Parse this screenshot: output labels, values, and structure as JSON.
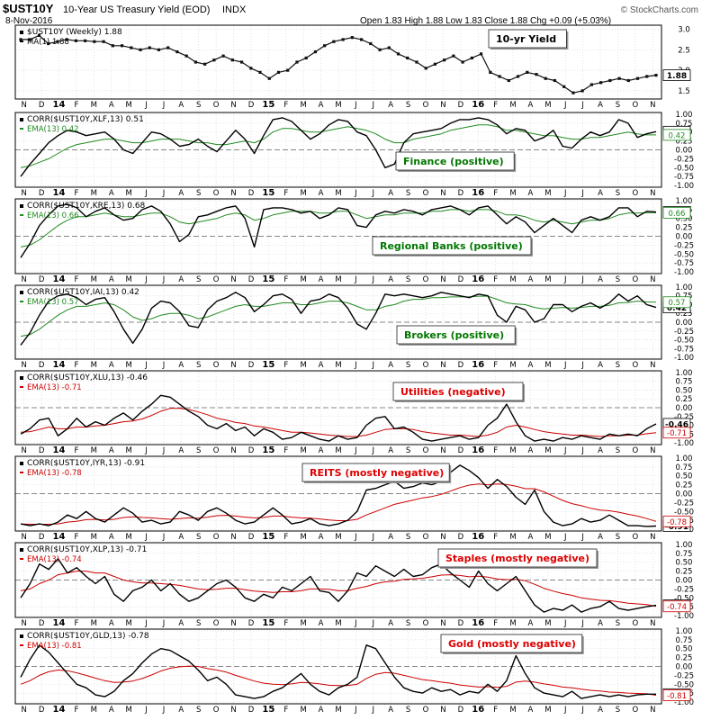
{
  "header": {
    "symbol": "$UST10Y",
    "description": "10-Year US Treasury Yield (EOD)",
    "exchange": "INDX",
    "date": "8-Nov-2016",
    "quote": "Open 1.83  High 1.88  Low 1.83  Close 1.88  Chg +0.09 (+5.03%)",
    "watermark": "© StockCharts.com"
  },
  "x_axis": {
    "months": [
      "N",
      "D",
      "14",
      "F",
      "M",
      "A",
      "M",
      "J",
      "J",
      "A",
      "S",
      "O",
      "N",
      "D",
      "15",
      "F",
      "M",
      "A",
      "M",
      "J",
      "J",
      "A",
      "S",
      "O",
      "N",
      "D",
      "16",
      "F",
      "M",
      "A",
      "M",
      "J",
      "J",
      "A",
      "S",
      "O",
      "N"
    ],
    "year_labels": [
      "14",
      "15",
      "16"
    ]
  },
  "colors": {
    "price_line": "#111111",
    "corr_line": "#000000",
    "positive_ema": "#228b22",
    "negative_ema": "#cc0000",
    "positive_label": "#007700",
    "negative_label": "#dd0000",
    "grid": "#d2d2d2",
    "zero_line": "#888888"
  },
  "chart_data": [
    {
      "id": "price",
      "type": "line",
      "legend": [
        "$UST10Y (Weekly) 1.88",
        "MA(1) 1.88"
      ],
      "annotation": "10-yr Yield",
      "last_value": "1.88",
      "y_ticks": [
        "3.0",
        "2.5",
        "2.0",
        "1.5"
      ],
      "ylim": [
        1.3,
        3.1
      ],
      "values": [
        2.75,
        2.75,
        2.85,
        2.65,
        2.7,
        2.75,
        2.72,
        2.72,
        2.7,
        2.7,
        2.6,
        2.6,
        2.55,
        2.5,
        2.55,
        2.5,
        2.55,
        2.45,
        2.35,
        2.2,
        2.15,
        2.25,
        2.35,
        2.25,
        2.2,
        2.05,
        1.95,
        1.8,
        1.95,
        2.0,
        2.2,
        2.3,
        2.45,
        2.6,
        2.7,
        2.75,
        2.8,
        2.75,
        2.65,
        2.5,
        2.55,
        2.4,
        2.3,
        2.2,
        2.05,
        2.15,
        2.25,
        2.35,
        2.2,
        2.3,
        2.4,
        1.95,
        1.85,
        1.75,
        1.85,
        1.95,
        1.9,
        1.8,
        1.75,
        1.6,
        1.45,
        1.5,
        1.65,
        1.7,
        1.75,
        1.8,
        1.75,
        1.8,
        1.85,
        1.88
      ]
    },
    {
      "id": "xlf",
      "type": "line",
      "legend": [
        "CORR($UST10Y,XLF,13) 0.51",
        "EMA(13) 0.42"
      ],
      "annotation": "Finance (positive)",
      "polarity": "positive",
      "last_value": "0.51",
      "last_ema": "0.42",
      "y_ticks": [
        "1.00",
        "0.75",
        "0.50",
        "0.25",
        "0.00",
        "-0.25",
        "-0.50",
        "-0.75",
        "-1.00"
      ],
      "ylim": [
        -1.05,
        1.05
      ],
      "corr": [
        -0.75,
        -0.4,
        -0.1,
        0.2,
        0.4,
        0.55,
        0.5,
        0.4,
        0.45,
        0.5,
        0.3,
        0.0,
        -0.1,
        0.2,
        0.5,
        0.45,
        0.3,
        0.1,
        0.15,
        0.3,
        0.1,
        -0.05,
        0.25,
        0.55,
        0.3,
        -0.1,
        0.4,
        0.85,
        0.9,
        0.8,
        0.55,
        0.3,
        0.45,
        0.7,
        0.85,
        0.8,
        0.5,
        0.4,
        0.0,
        -0.5,
        -0.4,
        0.2,
        0.45,
        0.5,
        0.55,
        0.6,
        0.75,
        0.85,
        0.85,
        0.9,
        0.85,
        0.7,
        0.45,
        0.6,
        0.55,
        0.25,
        0.35,
        0.55,
        0.1,
        0.05,
        0.3,
        0.5,
        0.4,
        0.5,
        0.85,
        0.75,
        0.35,
        0.45,
        0.51
      ],
      "ema": [
        -0.5,
        -0.45,
        -0.35,
        -0.25,
        -0.1,
        0.05,
        0.15,
        0.2,
        0.25,
        0.3,
        0.3,
        0.25,
        0.2,
        0.2,
        0.25,
        0.3,
        0.3,
        0.3,
        0.25,
        0.2,
        0.2,
        0.15,
        0.15,
        0.2,
        0.25,
        0.2,
        0.3,
        0.5,
        0.6,
        0.6,
        0.55,
        0.5,
        0.5,
        0.55,
        0.6,
        0.65,
        0.6,
        0.55,
        0.45,
        0.3,
        0.2,
        0.2,
        0.3,
        0.35,
        0.4,
        0.45,
        0.55,
        0.6,
        0.65,
        0.7,
        0.7,
        0.65,
        0.55,
        0.55,
        0.5,
        0.45,
        0.4,
        0.4,
        0.35,
        0.3,
        0.3,
        0.35,
        0.35,
        0.4,
        0.45,
        0.5,
        0.45,
        0.42,
        0.42
      ]
    },
    {
      "id": "kre",
      "type": "line",
      "legend": [
        "CORR($UST10Y,KRE,13) 0.68",
        "EMA(13) 0.66"
      ],
      "annotation": "Regional Banks (positive)",
      "polarity": "positive",
      "last_value": "0.68",
      "last_ema": "0.66",
      "y_ticks": [
        "1.00",
        "0.75",
        "0.50",
        "0.25",
        "0.00",
        "-0.25",
        "-0.50",
        "-0.75",
        "-1.00"
      ],
      "ylim": [
        -1.05,
        1.05
      ],
      "corr": [
        -0.6,
        -0.2,
        0.3,
        0.6,
        0.85,
        0.9,
        0.8,
        0.55,
        0.7,
        0.8,
        0.6,
        0.45,
        0.5,
        0.75,
        0.85,
        0.7,
        0.35,
        -0.15,
        0.05,
        0.55,
        0.6,
        0.7,
        0.8,
        0.85,
        0.5,
        -0.3,
        0.75,
        0.8,
        0.8,
        0.75,
        0.65,
        0.7,
        0.5,
        0.6,
        0.8,
        0.75,
        0.3,
        0.25,
        0.6,
        0.7,
        0.65,
        0.75,
        0.7,
        0.6,
        0.75,
        0.8,
        0.85,
        0.75,
        0.6,
        0.8,
        0.85,
        0.6,
        0.35,
        0.55,
        0.4,
        0.1,
        0.3,
        0.5,
        0.3,
        0.1,
        0.45,
        0.55,
        0.45,
        0.55,
        0.8,
        0.8,
        0.55,
        0.7,
        0.68
      ],
      "ema": [
        -0.3,
        -0.25,
        -0.1,
        0.1,
        0.3,
        0.45,
        0.55,
        0.55,
        0.6,
        0.65,
        0.6,
        0.55,
        0.55,
        0.6,
        0.65,
        0.65,
        0.55,
        0.4,
        0.35,
        0.4,
        0.45,
        0.5,
        0.6,
        0.65,
        0.6,
        0.45,
        0.5,
        0.6,
        0.65,
        0.7,
        0.7,
        0.7,
        0.65,
        0.65,
        0.7,
        0.7,
        0.6,
        0.5,
        0.55,
        0.6,
        0.6,
        0.65,
        0.65,
        0.65,
        0.7,
        0.7,
        0.75,
        0.75,
        0.7,
        0.75,
        0.75,
        0.7,
        0.6,
        0.6,
        0.55,
        0.45,
        0.4,
        0.45,
        0.4,
        0.35,
        0.4,
        0.45,
        0.45,
        0.5,
        0.6,
        0.65,
        0.65,
        0.66,
        0.66
      ]
    },
    {
      "id": "iai",
      "type": "line",
      "legend": [
        "CORR($UST10Y,IAI,13) 0.42",
        "EMA(13) 0.57"
      ],
      "annotation": "Brokers (positive)",
      "polarity": "positive",
      "last_value": "0.42",
      "last_ema": "0.57",
      "y_ticks": [
        "1.00",
        "0.75",
        "0.50",
        "0.25",
        "0.00",
        "-0.25",
        "-0.50",
        "-0.75",
        "-1.00"
      ],
      "ylim": [
        -1.05,
        1.05
      ],
      "corr": [
        -0.65,
        -0.3,
        0.2,
        0.6,
        0.75,
        0.8,
        0.7,
        0.5,
        0.65,
        0.7,
        0.3,
        -0.2,
        -0.6,
        -0.2,
        0.4,
        0.6,
        0.55,
        0.3,
        -0.1,
        -0.15,
        0.35,
        0.6,
        0.7,
        0.85,
        0.7,
        0.3,
        0.5,
        0.75,
        0.8,
        0.65,
        0.25,
        0.6,
        0.65,
        0.8,
        0.7,
        0.4,
        -0.05,
        -0.2,
        0.25,
        0.8,
        0.75,
        0.8,
        0.75,
        0.7,
        0.75,
        0.85,
        0.8,
        0.75,
        0.7,
        0.8,
        0.75,
        0.2,
        0.0,
        0.45,
        0.35,
        0.0,
        0.1,
        0.5,
        0.5,
        0.3,
        0.45,
        0.55,
        0.4,
        0.55,
        0.8,
        0.6,
        0.75,
        0.5,
        0.42
      ],
      "ema": [
        -0.4,
        -0.35,
        -0.2,
        0.0,
        0.2,
        0.35,
        0.45,
        0.45,
        0.5,
        0.55,
        0.5,
        0.35,
        0.15,
        0.05,
        0.1,
        0.2,
        0.25,
        0.25,
        0.2,
        0.1,
        0.15,
        0.25,
        0.35,
        0.45,
        0.5,
        0.45,
        0.45,
        0.5,
        0.55,
        0.55,
        0.5,
        0.5,
        0.55,
        0.6,
        0.6,
        0.55,
        0.45,
        0.35,
        0.35,
        0.45,
        0.5,
        0.6,
        0.65,
        0.65,
        0.7,
        0.7,
        0.72,
        0.72,
        0.72,
        0.74,
        0.74,
        0.65,
        0.55,
        0.52,
        0.5,
        0.42,
        0.38,
        0.4,
        0.42,
        0.4,
        0.42,
        0.45,
        0.45,
        0.48,
        0.55,
        0.56,
        0.6,
        0.58,
        0.57
      ]
    },
    {
      "id": "xlu",
      "type": "line",
      "legend": [
        "CORR($UST10Y,XLU,13) -0.46",
        "EMA(13) -0.71"
      ],
      "annotation": "Utilities (negative)",
      "polarity": "negative",
      "last_value": "-0.46",
      "last_ema": "-0.71",
      "y_ticks": [
        "1.00",
        "0.75",
        "0.50",
        "0.25",
        "0.00",
        "-0.25",
        "-0.50",
        "-0.75",
        "-1.00"
      ],
      "ylim": [
        -1.05,
        1.05
      ],
      "corr": [
        -0.75,
        -0.6,
        -0.35,
        -0.3,
        -0.8,
        -0.6,
        -0.3,
        -0.55,
        -0.4,
        -0.5,
        -0.3,
        -0.15,
        -0.35,
        -0.1,
        0.1,
        0.35,
        0.3,
        0.1,
        -0.1,
        -0.25,
        -0.5,
        -0.6,
        -0.45,
        -0.65,
        -0.55,
        -0.8,
        -0.6,
        -0.7,
        -0.9,
        -0.85,
        -0.7,
        -0.8,
        -0.9,
        -0.95,
        -0.8,
        -0.9,
        -0.85,
        -0.5,
        -0.3,
        -0.25,
        -0.6,
        -0.55,
        -0.7,
        -0.9,
        -0.95,
        -0.9,
        -0.85,
        -0.8,
        -0.9,
        -0.85,
        -0.5,
        -0.3,
        0.1,
        -0.4,
        -0.8,
        -0.95,
        -0.9,
        -0.95,
        -0.85,
        -0.9,
        -0.8,
        -0.85,
        -0.9,
        -0.75,
        -0.8,
        -0.75,
        -0.8,
        -0.6,
        -0.46
      ],
      "ema": [
        -0.7,
        -0.68,
        -0.62,
        -0.55,
        -0.6,
        -0.6,
        -0.55,
        -0.55,
        -0.52,
        -0.5,
        -0.45,
        -0.4,
        -0.38,
        -0.32,
        -0.22,
        -0.1,
        -0.02,
        -0.02,
        -0.05,
        -0.12,
        -0.2,
        -0.3,
        -0.35,
        -0.42,
        -0.45,
        -0.52,
        -0.55,
        -0.6,
        -0.65,
        -0.7,
        -0.7,
        -0.72,
        -0.75,
        -0.78,
        -0.8,
        -0.82,
        -0.82,
        -0.78,
        -0.7,
        -0.62,
        -0.6,
        -0.6,
        -0.62,
        -0.68,
        -0.72,
        -0.75,
        -0.78,
        -0.78,
        -0.8,
        -0.82,
        -0.78,
        -0.7,
        -0.55,
        -0.5,
        -0.55,
        -0.62,
        -0.68,
        -0.72,
        -0.75,
        -0.78,
        -0.78,
        -0.8,
        -0.82,
        -0.8,
        -0.8,
        -0.78,
        -0.78,
        -0.74,
        -0.71
      ]
    },
    {
      "id": "iyr",
      "type": "line",
      "legend": [
        "CORR($UST10Y,IYR,13) -0.91",
        "EMA(13) -0.78"
      ],
      "annotation": "REITS (mostly negative)",
      "polarity": "negative",
      "last_value": "-0.91",
      "last_ema": "-0.78",
      "y_ticks": [
        "1.00",
        "0.75",
        "0.50",
        "0.25",
        "0.00",
        "-0.25",
        "-0.50",
        "-0.75",
        "-1.00"
      ],
      "ylim": [
        -1.05,
        1.05
      ],
      "corr": [
        -0.85,
        -0.9,
        -0.85,
        -0.9,
        -0.8,
        -0.6,
        -0.7,
        -0.5,
        -0.7,
        -0.8,
        -0.6,
        -0.4,
        -0.55,
        -0.8,
        -0.75,
        -0.85,
        -0.8,
        -0.5,
        -0.6,
        -0.75,
        -0.5,
        -0.4,
        -0.55,
        -0.75,
        -0.85,
        -0.8,
        -0.6,
        -0.4,
        -0.6,
        -0.85,
        -0.8,
        -0.7,
        -0.85,
        -0.9,
        -0.85,
        -0.75,
        -0.5,
        0.1,
        0.15,
        0.25,
        0.35,
        0.15,
        0.2,
        0.3,
        0.25,
        0.35,
        0.6,
        0.8,
        0.65,
        0.45,
        0.15,
        0.4,
        0.2,
        -0.1,
        -0.3,
        0.1,
        -0.5,
        -0.8,
        -0.9,
        -0.85,
        -0.7,
        -0.8,
        -0.75,
        -0.6,
        -0.75,
        -0.9,
        -0.9,
        -0.92,
        -0.91
      ],
      "ema": [
        -0.85,
        -0.86,
        -0.86,
        -0.86,
        -0.85,
        -0.8,
        -0.78,
        -0.73,
        -0.72,
        -0.74,
        -0.72,
        -0.67,
        -0.65,
        -0.67,
        -0.68,
        -0.7,
        -0.72,
        -0.7,
        -0.68,
        -0.69,
        -0.66,
        -0.62,
        -0.61,
        -0.63,
        -0.66,
        -0.68,
        -0.67,
        -0.63,
        -0.63,
        -0.66,
        -0.68,
        -0.69,
        -0.71,
        -0.74,
        -0.76,
        -0.76,
        -0.72,
        -0.6,
        -0.5,
        -0.4,
        -0.3,
        -0.24,
        -0.18,
        -0.12,
        -0.08,
        -0.02,
        0.07,
        0.17,
        0.24,
        0.27,
        0.25,
        0.27,
        0.26,
        0.21,
        0.14,
        0.14,
        0.05,
        -0.07,
        -0.19,
        -0.28,
        -0.34,
        -0.41,
        -0.46,
        -0.48,
        -0.52,
        -0.58,
        -0.63,
        -0.7,
        -0.78
      ]
    },
    {
      "id": "xlp",
      "type": "line",
      "legend": [
        "CORR($UST10Y,XLP,13) -0.71",
        "EMA(13) -0.74"
      ],
      "annotation": "Staples (mostly negative)",
      "polarity": "negative",
      "last_value": "-0.71",
      "last_ema": "-0.74",
      "y_ticks": [
        "1.00",
        "0.75",
        "0.50",
        "0.25",
        "0.00",
        "-0.25",
        "-0.50",
        "-0.75",
        "-1.00"
      ],
      "ylim": [
        -1.05,
        1.05
      ],
      "corr": [
        -0.5,
        -0.1,
        0.45,
        0.3,
        0.6,
        0.2,
        0.35,
        0.1,
        -0.1,
        0.1,
        -0.4,
        -0.6,
        -0.3,
        -0.2,
        0.0,
        -0.3,
        -0.1,
        -0.4,
        -0.6,
        -0.5,
        -0.3,
        -0.1,
        0.0,
        -0.2,
        -0.5,
        -0.6,
        -0.4,
        -0.5,
        -0.2,
        -0.3,
        -0.1,
        0.1,
        -0.3,
        -0.35,
        -0.6,
        -0.3,
        0.2,
        0.1,
        0.4,
        0.25,
        0.1,
        0.3,
        0.1,
        0.15,
        0.35,
        0.45,
        0.2,
        0.0,
        -0.2,
        0.25,
        -0.1,
        -0.3,
        -0.1,
        0.1,
        -0.3,
        -0.7,
        -0.9,
        -0.8,
        -0.85,
        -0.7,
        -0.9,
        -0.8,
        -0.75,
        -0.6,
        -0.8,
        -0.85,
        -0.8,
        -0.75,
        -0.71
      ],
      "ema": [
        -0.3,
        -0.25,
        -0.1,
        0.0,
        0.15,
        0.2,
        0.25,
        0.25,
        0.2,
        0.2,
        0.1,
        0.0,
        -0.05,
        -0.08,
        -0.08,
        -0.1,
        -0.12,
        -0.15,
        -0.2,
        -0.25,
        -0.27,
        -0.26,
        -0.23,
        -0.23,
        -0.27,
        -0.31,
        -0.33,
        -0.35,
        -0.33,
        -0.33,
        -0.3,
        -0.25,
        -0.25,
        -0.26,
        -0.3,
        -0.3,
        -0.23,
        -0.18,
        -0.1,
        -0.05,
        -0.03,
        0.02,
        0.03,
        0.05,
        0.09,
        0.14,
        0.15,
        0.13,
        0.09,
        0.11,
        0.08,
        0.03,
        0.01,
        0.02,
        -0.02,
        -0.12,
        -0.23,
        -0.31,
        -0.38,
        -0.43,
        -0.5,
        -0.54,
        -0.57,
        -0.58,
        -0.61,
        -0.65,
        -0.67,
        -0.69,
        -0.74
      ]
    },
    {
      "id": "gld",
      "type": "line",
      "legend": [
        "CORR($UST10Y,GLD,13) -0.78",
        "EMA(13) -0.81"
      ],
      "annotation": "Gold (mostly negative)",
      "polarity": "negative",
      "last_value": "-0.78",
      "last_ema": "-0.81",
      "y_ticks": [
        "1.00",
        "0.75",
        "0.50",
        "0.25",
        "0.00",
        "-0.25",
        "-0.50",
        "-0.75",
        "-1.00"
      ],
      "ylim": [
        -1.05,
        1.05
      ],
      "corr": [
        -0.3,
        0.2,
        0.6,
        0.4,
        0.1,
        -0.2,
        -0.5,
        -0.6,
        -0.8,
        -0.85,
        -0.7,
        -0.4,
        -0.2,
        0.1,
        0.35,
        0.5,
        0.45,
        0.3,
        0.15,
        -0.1,
        -0.4,
        -0.3,
        -0.5,
        -0.8,
        -0.85,
        -0.9,
        -0.85,
        -0.7,
        -0.6,
        -0.4,
        -0.2,
        -0.5,
        -0.7,
        -0.8,
        -0.6,
        -0.5,
        -0.3,
        0.6,
        0.5,
        0.1,
        -0.3,
        -0.6,
        -0.7,
        -0.75,
        -0.6,
        -0.7,
        -0.65,
        -0.8,
        -0.7,
        -0.75,
        -0.5,
        -0.7,
        -0.4,
        0.3,
        -0.2,
        -0.6,
        -0.75,
        -0.8,
        -0.85,
        -0.7,
        -0.9,
        -0.85,
        -0.8,
        -0.85,
        -0.8,
        -0.85,
        -0.8,
        -0.78,
        -0.78
      ],
      "ema": [
        -0.5,
        -0.4,
        -0.25,
        -0.15,
        -0.1,
        -0.12,
        -0.18,
        -0.25,
        -0.33,
        -0.4,
        -0.45,
        -0.44,
        -0.41,
        -0.34,
        -0.24,
        -0.13,
        -0.05,
        -0.01,
        0.01,
        0.0,
        -0.06,
        -0.1,
        -0.16,
        -0.25,
        -0.33,
        -0.41,
        -0.47,
        -0.5,
        -0.51,
        -0.49,
        -0.45,
        -0.46,
        -0.49,
        -0.53,
        -0.54,
        -0.54,
        -0.5,
        -0.34,
        -0.22,
        -0.17,
        -0.19,
        -0.25,
        -0.31,
        -0.37,
        -0.4,
        -0.44,
        -0.47,
        -0.52,
        -0.55,
        -0.58,
        -0.57,
        -0.59,
        -0.56,
        -0.44,
        -0.41,
        -0.44,
        -0.49,
        -0.53,
        -0.58,
        -0.6,
        -0.64,
        -0.67,
        -0.69,
        -0.72,
        -0.73,
        -0.75,
        -0.76,
        -0.77,
        -0.81
      ]
    }
  ]
}
